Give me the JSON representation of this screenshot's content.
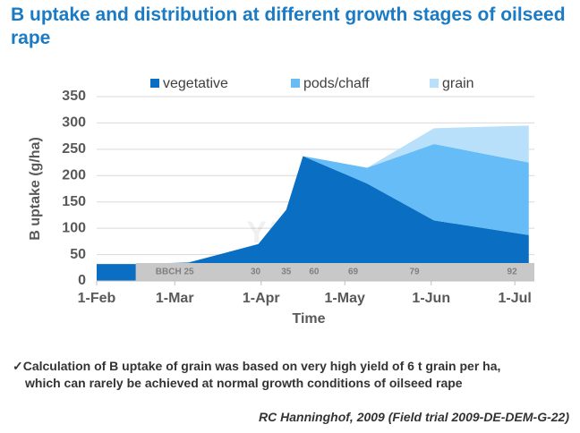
{
  "chart_data": {
    "type": "area",
    "title": "B uptake and distribution at different growth stages of oilseed rape",
    "ylabel": "B uptake (g/ha)",
    "xlabel": "Time",
    "x": [
      0,
      14,
      33,
      58,
      68,
      74,
      97,
      121,
      155
    ],
    "series": [
      {
        "name": "vegetative",
        "color": "#0a6fc2",
        "values": [
          32,
          32,
          35,
          70,
          135,
          237,
          185,
          115,
          87
        ]
      },
      {
        "name": "pods/chaff",
        "color": "#66bcf7",
        "values": [
          0,
          0,
          0,
          0,
          0,
          0,
          30,
          145,
          138
        ]
      },
      {
        "name": "grain",
        "color": "#b9e0fb",
        "values": [
          0,
          0,
          0,
          0,
          0,
          0,
          0,
          30,
          70
        ]
      }
    ],
    "xlim": [
      0,
      157
    ],
    "xticks": [
      {
        "value": 0,
        "label": "1-Feb"
      },
      {
        "value": 28,
        "label": "1-Mar"
      },
      {
        "value": 59,
        "label": "1-Apr"
      },
      {
        "value": 89,
        "label": "1-May"
      },
      {
        "value": 120,
        "label": "1-Jun"
      },
      {
        "value": 150,
        "label": "1-Jul"
      }
    ],
    "ylim": [
      0,
      350
    ],
    "yticks": [
      0,
      50,
      100,
      150,
      200,
      250,
      300,
      350
    ],
    "grid": true,
    "stages": {
      "labels": [
        "BBCH 25",
        "30",
        "35",
        "60",
        "69",
        "79",
        "92"
      ],
      "x": [
        28,
        57,
        68,
        78,
        92,
        114,
        149
      ]
    },
    "watermark": "YARA"
  },
  "notes": {
    "check": "✓",
    "text": [
      "Calculation of B uptake of grain was based on very high yield of 6 t grain per ha,",
      "which can rarely be achieved at normal growth conditions of oilseed rape"
    ],
    "citation": "RC Hanninghof, 2009 (Field trial 2009-DE-DEM-G-22)"
  }
}
